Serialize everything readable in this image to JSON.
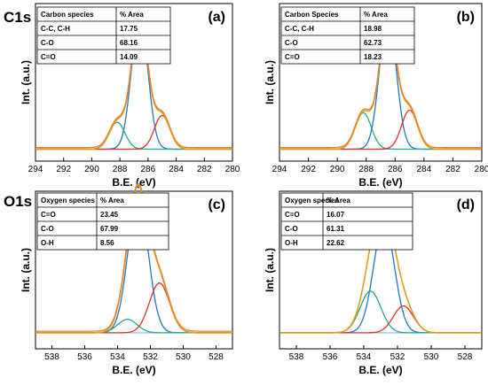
{
  "row_labels": [
    "C1s",
    "O1s"
  ],
  "chart_data": [
    {
      "type": "line",
      "panel_label": "(a)",
      "xlabel": "B.E. (eV)",
      "ylabel": "Int. (a.u.)",
      "xlim": [
        294,
        280
      ],
      "x_ticks": [
        294,
        292,
        290,
        288,
        286,
        284,
        282,
        280
      ],
      "y_ticks_shown": false,
      "grid": false,
      "legend": "none",
      "table": {
        "position": "top-left",
        "headers": [
          "Carbon species",
          "% Area"
        ],
        "rows": [
          [
            "C-C, C-H",
            "17.75"
          ],
          [
            "C-O",
            "68.16"
          ],
          [
            "C=O",
            "14.09"
          ]
        ]
      },
      "components": [
        {
          "assignment": "C-O",
          "center": 286.6,
          "fwhm": 1.35,
          "peak_height": 1.0,
          "color": "#2277c4"
        },
        {
          "assignment": "C=O",
          "center": 288.2,
          "fwhm": 1.3,
          "peak_height": 0.2,
          "color": "#22aa88"
        },
        {
          "assignment": "C-C, C-H",
          "center": 285.0,
          "fwhm": 1.3,
          "peak_height": 0.25,
          "color": "#d9342b"
        }
      ],
      "envelope_colors": [
        "#d9a020",
        "#e87f2f"
      ],
      "background_level": 0.01,
      "background_color": "#8fb0e0"
    },
    {
      "type": "line",
      "panel_label": "(b)",
      "xlabel": "B.E. (eV)",
      "ylabel": "Int. (a.u.)",
      "xlim": [
        294,
        280
      ],
      "x_ticks": [
        294,
        292,
        290,
        288,
        286,
        284,
        282,
        280
      ],
      "y_ticks_shown": false,
      "grid": false,
      "legend": "none",
      "table": {
        "position": "top-left",
        "headers": [
          "Carbon Species",
          "% Area"
        ],
        "rows": [
          [
            "C-C, C-H",
            "18.98"
          ],
          [
            "C-O",
            "62.73"
          ],
          [
            "C=O",
            "18.23"
          ]
        ]
      },
      "components": [
        {
          "assignment": "C-O",
          "center": 286.5,
          "fwhm": 1.35,
          "peak_height": 1.0,
          "color": "#2277c4"
        },
        {
          "assignment": "C=O",
          "center": 288.2,
          "fwhm": 1.3,
          "peak_height": 0.27,
          "color": "#22aa88"
        },
        {
          "assignment": "C-C, C-H",
          "center": 285.0,
          "fwhm": 1.3,
          "peak_height": 0.29,
          "color": "#d9342b"
        }
      ],
      "envelope_colors": [
        "#d9a020",
        "#e87f2f"
      ],
      "background_level": 0.01,
      "background_color": "#8fb0e0"
    },
    {
      "type": "line",
      "panel_label": "(c)",
      "xlabel": "B.E. (eV)",
      "ylabel": "Int. (a.u.)",
      "xlim": [
        539,
        527
      ],
      "x_ticks": [
        538,
        536,
        534,
        532,
        530,
        528
      ],
      "y_ticks_shown": false,
      "grid": false,
      "legend": "none",
      "table": {
        "position": "top-left",
        "headers": [
          "Oxygen species",
          "% Area"
        ],
        "rows": [
          [
            "C=O",
            "23.45"
          ],
          [
            "C-O",
            "67.99"
          ],
          [
            "O-H",
            "8.56"
          ]
        ]
      },
      "components": [
        {
          "assignment": "C-O",
          "center": 532.75,
          "fwhm": 1.45,
          "peak_height": 1.0,
          "color": "#2277c4"
        },
        {
          "assignment": "O-H",
          "center": 533.4,
          "fwhm": 1.4,
          "peak_height": 0.1,
          "color": "#22aa88"
        },
        {
          "assignment": "C=O",
          "center": 531.45,
          "fwhm": 1.45,
          "peak_height": 0.37,
          "color": "#d9342b"
        }
      ],
      "envelope_colors": [
        "#d9a020",
        "#e87f2f"
      ],
      "background_level": 0.04,
      "background_color": "#8fb0e0"
    },
    {
      "type": "line",
      "panel_label": "(d)",
      "xlabel": "B.E. (eV)",
      "ylabel": "Int. (a.u.)",
      "xlim": [
        539,
        527
      ],
      "x_ticks": [
        538,
        536,
        534,
        532,
        530,
        528
      ],
      "y_ticks_shown": false,
      "grid": false,
      "legend": "none",
      "table": {
        "position": "top-left",
        "headers": [
          "Oxygen species",
          "% Area"
        ],
        "rows": [
          [
            "C=O",
            "16.07"
          ],
          [
            "C-O",
            "61.31"
          ],
          [
            "O-H",
            "22.62"
          ]
        ]
      },
      "components": [
        {
          "assignment": "C-O",
          "center": 532.8,
          "fwhm": 1.45,
          "peak_height": 0.82,
          "color": "#2277c4"
        },
        {
          "assignment": "O-H",
          "center": 533.6,
          "fwhm": 1.45,
          "peak_height": 0.31,
          "color": "#22aa88"
        },
        {
          "assignment": "C=O",
          "center": 531.65,
          "fwhm": 1.4,
          "peak_height": 0.2,
          "color": "#d9342b"
        }
      ],
      "envelope_colors": [
        "#d9a020"
      ],
      "background_level": 0.04,
      "background_color": "#8fb0e0"
    }
  ]
}
